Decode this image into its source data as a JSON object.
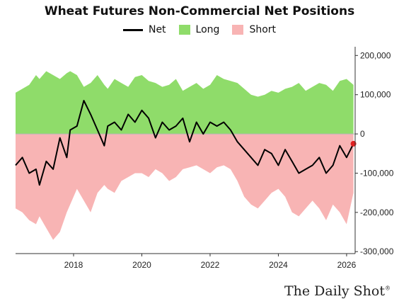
{
  "chart_data": {
    "type": "area",
    "title": "Wheat Futures Non-Commercial Net Positions",
    "legend": {
      "placement": "top-center",
      "items": [
        {
          "name": "Net",
          "kind": "line",
          "color": "#000000"
        },
        {
          "name": "Long",
          "kind": "box",
          "color": "#8fdc6a"
        },
        {
          "name": "Short",
          "kind": "box",
          "color": "#f8b4b4"
        }
      ]
    },
    "x_ticks": [
      "2018",
      "2020",
      "2022",
      "2024",
      "2026"
    ],
    "x_range": [
      2016.3,
      2026.25
    ],
    "y_ticks": [
      "200,000",
      "100,000",
      "0",
      "-100,000",
      "-200,000",
      "-300,000"
    ],
    "y_tick_values": [
      200000,
      100000,
      0,
      -100000,
      -200000,
      -300000
    ],
    "ylim": [
      -305000,
      215000
    ],
    "y_axis_side": "right",
    "grid": false,
    "last_point_marker_color": "#e02020",
    "series": [
      {
        "name": "Long",
        "x": [
          2016.3,
          2016.5,
          2016.7,
          2016.9,
          2017.0,
          2017.2,
          2017.4,
          2017.6,
          2017.8,
          2017.9,
          2018.1,
          2018.3,
          2018.5,
          2018.7,
          2018.9,
          2019.0,
          2019.2,
          2019.4,
          2019.6,
          2019.8,
          2020.0,
          2020.2,
          2020.4,
          2020.6,
          2020.8,
          2021.0,
          2021.2,
          2021.4,
          2021.6,
          2021.8,
          2022.0,
          2022.2,
          2022.4,
          2022.6,
          2022.8,
          2023.0,
          2023.2,
          2023.4,
          2023.6,
          2023.8,
          2024.0,
          2024.2,
          2024.4,
          2024.6,
          2024.8,
          2025.0,
          2025.2,
          2025.4,
          2025.6,
          2025.8,
          2026.0,
          2026.2
        ],
        "values": [
          105000,
          115000,
          125000,
          150000,
          140000,
          160000,
          150000,
          140000,
          155000,
          160000,
          150000,
          120000,
          130000,
          150000,
          125000,
          115000,
          140000,
          130000,
          120000,
          145000,
          150000,
          135000,
          130000,
          120000,
          125000,
          140000,
          110000,
          120000,
          130000,
          115000,
          125000,
          150000,
          140000,
          135000,
          130000,
          115000,
          100000,
          95000,
          100000,
          110000,
          105000,
          115000,
          120000,
          130000,
          110000,
          120000,
          130000,
          125000,
          110000,
          135000,
          140000,
          125000
        ]
      },
      {
        "name": "Short",
        "x": [
          2016.3,
          2016.5,
          2016.7,
          2016.9,
          2017.0,
          2017.2,
          2017.4,
          2017.6,
          2017.8,
          2017.9,
          2018.1,
          2018.3,
          2018.5,
          2018.7,
          2018.9,
          2019.0,
          2019.2,
          2019.4,
          2019.6,
          2019.8,
          2020.0,
          2020.2,
          2020.4,
          2020.6,
          2020.8,
          2021.0,
          2021.2,
          2021.4,
          2021.6,
          2021.8,
          2022.0,
          2022.2,
          2022.4,
          2022.6,
          2022.8,
          2023.0,
          2023.2,
          2023.4,
          2023.6,
          2023.8,
          2024.0,
          2024.2,
          2024.4,
          2024.6,
          2024.8,
          2025.0,
          2025.2,
          2025.4,
          2025.6,
          2025.8,
          2026.0,
          2026.2
        ],
        "values": [
          -190000,
          -200000,
          -220000,
          -230000,
          -210000,
          -240000,
          -270000,
          -250000,
          -200000,
          -180000,
          -140000,
          -170000,
          -200000,
          -150000,
          -130000,
          -140000,
          -150000,
          -120000,
          -110000,
          -100000,
          -100000,
          -110000,
          -90000,
          -100000,
          -120000,
          -110000,
          -90000,
          -85000,
          -80000,
          -90000,
          -100000,
          -85000,
          -80000,
          -90000,
          -120000,
          -160000,
          -180000,
          -190000,
          -170000,
          -150000,
          -140000,
          -160000,
          -200000,
          -210000,
          -190000,
          -170000,
          -190000,
          -220000,
          -180000,
          -200000,
          -230000,
          -150000
        ]
      },
      {
        "name": "Net",
        "x": [
          2016.3,
          2016.5,
          2016.7,
          2016.9,
          2017.0,
          2017.2,
          2017.4,
          2017.6,
          2017.8,
          2017.9,
          2018.1,
          2018.3,
          2018.5,
          2018.7,
          2018.9,
          2019.0,
          2019.2,
          2019.4,
          2019.6,
          2019.8,
          2020.0,
          2020.2,
          2020.4,
          2020.6,
          2020.8,
          2021.0,
          2021.2,
          2021.4,
          2021.6,
          2021.8,
          2022.0,
          2022.2,
          2022.4,
          2022.6,
          2022.8,
          2023.0,
          2023.2,
          2023.4,
          2023.6,
          2023.8,
          2024.0,
          2024.2,
          2024.4,
          2024.6,
          2024.8,
          2025.0,
          2025.2,
          2025.4,
          2025.6,
          2025.8,
          2026.0,
          2026.2
        ],
        "values": [
          -80000,
          -60000,
          -100000,
          -90000,
          -130000,
          -70000,
          -90000,
          -10000,
          -60000,
          10000,
          20000,
          85000,
          50000,
          10000,
          -30000,
          20000,
          30000,
          10000,
          50000,
          30000,
          60000,
          40000,
          -10000,
          30000,
          10000,
          20000,
          40000,
          -20000,
          30000,
          0,
          30000,
          20000,
          30000,
          10000,
          -20000,
          -40000,
          -60000,
          -80000,
          -40000,
          -50000,
          -80000,
          -40000,
          -70000,
          -100000,
          -90000,
          -80000,
          -60000,
          -100000,
          -80000,
          -30000,
          -60000,
          -25000
        ]
      }
    ]
  },
  "branding": {
    "text": "The Daily Shot",
    "mark": "®"
  }
}
